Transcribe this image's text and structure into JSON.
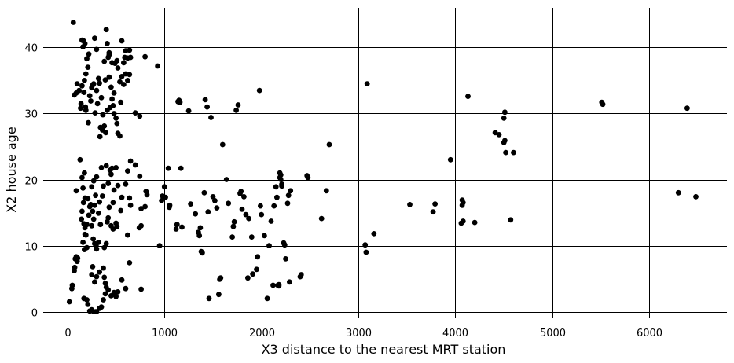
{
  "chart_data": {
    "type": "scatter",
    "title": "",
    "xlabel": "X3 distance to the nearest MRT station",
    "ylabel": "X2 house age",
    "xlim": [
      -250,
      6800
    ],
    "ylim": [
      -1,
      46
    ],
    "xticks": [
      0,
      1000,
      2000,
      3000,
      4000,
      5000,
      6000
    ],
    "yticks": [
      0,
      10,
      20,
      30,
      40
    ],
    "grid": true,
    "point_color": "#000000",
    "points": [
      [
        60,
        43.8
      ],
      [
        20,
        1.5
      ],
      [
        45,
        3.5
      ],
      [
        50,
        4
      ],
      [
        70,
        6.2
      ],
      [
        75,
        6.7
      ],
      [
        80,
        8
      ],
      [
        90,
        8.3
      ],
      [
        100,
        7.6
      ],
      [
        105,
        8.1
      ],
      [
        90,
        18.3
      ],
      [
        70,
        32.8
      ],
      [
        90,
        33.1
      ],
      [
        100,
        34.5
      ],
      [
        120,
        33.5
      ],
      [
        135,
        30.8
      ],
      [
        140,
        31.5
      ],
      [
        150,
        41.1
      ],
      [
        160,
        40.1
      ],
      [
        165,
        41
      ],
      [
        180,
        40.6
      ],
      [
        200,
        38.3
      ],
      [
        220,
        39
      ],
      [
        210,
        37
      ],
      [
        190,
        36
      ],
      [
        175,
        35
      ],
      [
        170,
        33.2
      ],
      [
        185,
        31
      ],
      [
        190,
        30.5
      ],
      [
        215,
        28.6
      ],
      [
        150,
        34.2
      ],
      [
        230,
        32.7
      ],
      [
        240,
        31.9
      ],
      [
        250,
        33.9
      ],
      [
        260,
        34.3
      ],
      [
        270,
        34.5
      ],
      [
        280,
        41.4
      ],
      [
        300,
        39.7
      ],
      [
        320,
        35.3
      ],
      [
        330,
        34.6
      ],
      [
        300,
        33.5
      ],
      [
        310,
        31.5
      ],
      [
        285,
        30.1
      ],
      [
        350,
        32.4
      ],
      [
        365,
        29.8
      ],
      [
        340,
        27.9
      ],
      [
        335,
        26.5
      ],
      [
        360,
        27.5
      ],
      [
        380,
        28.1
      ],
      [
        395,
        27.1
      ],
      [
        400,
        42.7
      ],
      [
        410,
        40.6
      ],
      [
        420,
        38.5
      ],
      [
        430,
        38.9
      ],
      [
        380,
        37.9
      ],
      [
        390,
        35.1
      ],
      [
        430,
        35.5
      ],
      [
        450,
        34
      ],
      [
        480,
        33.1
      ],
      [
        460,
        32.2
      ],
      [
        470,
        31.2
      ],
      [
        410,
        30.5
      ],
      [
        440,
        30.9
      ],
      [
        480,
        30
      ],
      [
        500,
        29.3
      ],
      [
        510,
        28.5
      ],
      [
        520,
        27
      ],
      [
        540,
        26.6
      ],
      [
        430,
        39.2
      ],
      [
        460,
        37.7
      ],
      [
        490,
        37.6
      ],
      [
        510,
        38
      ],
      [
        520,
        36.9
      ],
      [
        560,
        41
      ],
      [
        590,
        38.5
      ],
      [
        600,
        36
      ],
      [
        620,
        35
      ],
      [
        640,
        35.9
      ],
      [
        540,
        34.8
      ],
      [
        560,
        35.6
      ],
      [
        580,
        34.4
      ],
      [
        600,
        39.5
      ],
      [
        640,
        39.6
      ],
      [
        620,
        38.4
      ],
      [
        580,
        37.7
      ],
      [
        550,
        31.7
      ],
      [
        650,
        38.5
      ],
      [
        700,
        30.1
      ],
      [
        745,
        29.6
      ],
      [
        800,
        38.6
      ],
      [
        930,
        37.2
      ],
      [
        130,
        23
      ],
      [
        150,
        20.3
      ],
      [
        175,
        21
      ],
      [
        160,
        18.7
      ],
      [
        180,
        17.2
      ],
      [
        165,
        16.5
      ],
      [
        150,
        15.2
      ],
      [
        145,
        14
      ],
      [
        170,
        13.3
      ],
      [
        180,
        12.7
      ],
      [
        190,
        11.6
      ],
      [
        200,
        13.2
      ],
      [
        220,
        14.6
      ],
      [
        230,
        15.9
      ],
      [
        240,
        16.2
      ],
      [
        210,
        17.1
      ],
      [
        200,
        9.7
      ],
      [
        180,
        11.7
      ],
      [
        160,
        10.5
      ],
      [
        175,
        9.4
      ],
      [
        250,
        18.9
      ],
      [
        270,
        19.8
      ],
      [
        300,
        20.4
      ],
      [
        290,
        17.6
      ],
      [
        280,
        16.1
      ],
      [
        260,
        15.2
      ],
      [
        270,
        14
      ],
      [
        250,
        13
      ],
      [
        265,
        11
      ],
      [
        280,
        10.3
      ],
      [
        295,
        10
      ],
      [
        300,
        9.5
      ],
      [
        320,
        10.5
      ],
      [
        340,
        13.2
      ],
      [
        320,
        14.9
      ],
      [
        330,
        16.6
      ],
      [
        360,
        17.5
      ],
      [
        370,
        19
      ],
      [
        350,
        21.8
      ],
      [
        400,
        22.1
      ],
      [
        420,
        19.4
      ],
      [
        440,
        21.4
      ],
      [
        450,
        20.8
      ],
      [
        460,
        21.7
      ],
      [
        500,
        21.8
      ],
      [
        520,
        19.1
      ],
      [
        480,
        18.4
      ],
      [
        470,
        16.5
      ],
      [
        430,
        15.8
      ],
      [
        420,
        14.2
      ],
      [
        410,
        13.6
      ],
      [
        450,
        13
      ],
      [
        470,
        12.5
      ],
      [
        500,
        13.4
      ],
      [
        510,
        12.9
      ],
      [
        550,
        15.3
      ],
      [
        560,
        17.3
      ],
      [
        600,
        19.3
      ],
      [
        620,
        21.3
      ],
      [
        650,
        22.8
      ],
      [
        700,
        22.2
      ],
      [
        745,
        20.5
      ],
      [
        650,
        16.1
      ],
      [
        640,
        17.2
      ],
      [
        760,
        15.6
      ],
      [
        800,
        15.9
      ],
      [
        820,
        17.7
      ],
      [
        810,
        18.2
      ],
      [
        760,
        13
      ],
      [
        740,
        12.7
      ],
      [
        620,
        11.6
      ],
      [
        400,
        10.3
      ],
      [
        380,
        9.7
      ],
      [
        330,
        6
      ],
      [
        370,
        6.6
      ],
      [
        380,
        5.2
      ],
      [
        390,
        4.3
      ],
      [
        400,
        3.7
      ],
      [
        420,
        3.3
      ],
      [
        450,
        2.4
      ],
      [
        480,
        2.9
      ],
      [
        500,
        2.3
      ],
      [
        520,
        3
      ],
      [
        560,
        4.8
      ],
      [
        600,
        3.5
      ],
      [
        640,
        7.4
      ],
      [
        760,
        3.4
      ],
      [
        170,
        2
      ],
      [
        200,
        1.8
      ],
      [
        210,
        1.1
      ],
      [
        230,
        0.1
      ],
      [
        250,
        0.3
      ],
      [
        270,
        0
      ],
      [
        290,
        0
      ],
      [
        300,
        0
      ],
      [
        330,
        0.5
      ],
      [
        350,
        0.7
      ],
      [
        370,
        1.8
      ],
      [
        390,
        2.7
      ],
      [
        280,
        4.5
      ],
      [
        250,
        5.6
      ],
      [
        260,
        6.8
      ],
      [
        300,
        5.3
      ],
      [
        950,
        10
      ],
      [
        970,
        16.8
      ],
      [
        980,
        17.5
      ],
      [
        1000,
        18.9
      ],
      [
        1010,
        17.3
      ],
      [
        1040,
        21.7
      ],
      [
        1050,
        15.8
      ],
      [
        1055,
        16.1
      ],
      [
        1120,
        12.5
      ],
      [
        1130,
        13.2
      ],
      [
        1140,
        31.8
      ],
      [
        1150,
        32
      ],
      [
        1160,
        31.7
      ],
      [
        1170,
        21.7
      ],
      [
        1180,
        12.8
      ],
      [
        1250,
        30.4
      ],
      [
        1270,
        16.3
      ],
      [
        1320,
        14.8
      ],
      [
        1350,
        12
      ],
      [
        1360,
        11.5
      ],
      [
        1370,
        12.7
      ],
      [
        1380,
        9.1
      ],
      [
        1390,
        8.9
      ],
      [
        1410,
        18
      ],
      [
        1420,
        32.1
      ],
      [
        1440,
        31
      ],
      [
        1450,
        15.1
      ],
      [
        1460,
        2
      ],
      [
        1480,
        29.4
      ],
      [
        1500,
        17.4
      ],
      [
        1520,
        16.8
      ],
      [
        1540,
        15.7
      ],
      [
        1570,
        4.9
      ],
      [
        1580,
        5.1
      ],
      [
        1560,
        2.6
      ],
      [
        1600,
        25.3
      ],
      [
        1640,
        20
      ],
      [
        1660,
        16.4
      ],
      [
        1700,
        11.3
      ],
      [
        1710,
        12.9
      ],
      [
        1720,
        13.6
      ],
      [
        1740,
        30.5
      ],
      [
        1760,
        31.3
      ],
      [
        1780,
        17.9
      ],
      [
        1790,
        18.2
      ],
      [
        1800,
        15.5
      ],
      [
        1820,
        17.4
      ],
      [
        1840,
        14.7
      ],
      [
        1860,
        5.1
      ],
      [
        1870,
        14.1
      ],
      [
        1900,
        11.3
      ],
      [
        1910,
        5.7
      ],
      [
        1950,
        6.4
      ],
      [
        1960,
        8.3
      ],
      [
        1980,
        33.5
      ],
      [
        1990,
        16
      ],
      [
        2000,
        14.7
      ],
      [
        2030,
        11.5
      ],
      [
        2060,
        2
      ],
      [
        2080,
        10
      ],
      [
        2100,
        13.7
      ],
      [
        2120,
        4
      ],
      [
        2130,
        16
      ],
      [
        2150,
        18.9
      ],
      [
        2160,
        17.3
      ],
      [
        2170,
        4
      ],
      [
        2180,
        4.1
      ],
      [
        2190,
        21
      ],
      [
        2200,
        20.7
      ],
      [
        2190,
        20.3
      ],
      [
        2200,
        20
      ],
      [
        2210,
        19.3
      ],
      [
        2210,
        19
      ],
      [
        2180,
        3.9
      ],
      [
        2230,
        10.4
      ],
      [
        2240,
        10.1
      ],
      [
        2250,
        8
      ],
      [
        2270,
        16.4
      ],
      [
        2280,
        17.6
      ],
      [
        2300,
        18.3
      ],
      [
        2290,
        4.5
      ],
      [
        2400,
        5.3
      ],
      [
        2410,
        5.6
      ],
      [
        2480,
        20.3
      ],
      [
        2470,
        20.6
      ],
      [
        2620,
        14.1
      ],
      [
        2670,
        18.3
      ],
      [
        2700,
        25.3
      ],
      [
        3070,
        10.1
      ],
      [
        3080,
        9
      ],
      [
        3090,
        34.5
      ],
      [
        3160,
        11.8
      ],
      [
        3530,
        16.2
      ],
      [
        3770,
        15.1
      ],
      [
        3790,
        16.3
      ],
      [
        3950,
        23
      ],
      [
        4070,
        16.9
      ],
      [
        4080,
        16.5
      ],
      [
        4070,
        16.1
      ],
      [
        4080,
        13.7
      ],
      [
        4060,
        13.4
      ],
      [
        4130,
        32.6
      ],
      [
        4200,
        13.5
      ],
      [
        4410,
        27.1
      ],
      [
        4450,
        26.8
      ],
      [
        4500,
        25.6
      ],
      [
        4510,
        25.9
      ],
      [
        4520,
        24.1
      ],
      [
        4510,
        30.2
      ],
      [
        4500,
        29.3
      ],
      [
        4570,
        13.9
      ],
      [
        4600,
        24.1
      ],
      [
        5510,
        31.7
      ],
      [
        5520,
        31.4
      ],
      [
        6300,
        18
      ],
      [
        6390,
        30.8
      ],
      [
        6480,
        17.4
      ]
    ]
  }
}
